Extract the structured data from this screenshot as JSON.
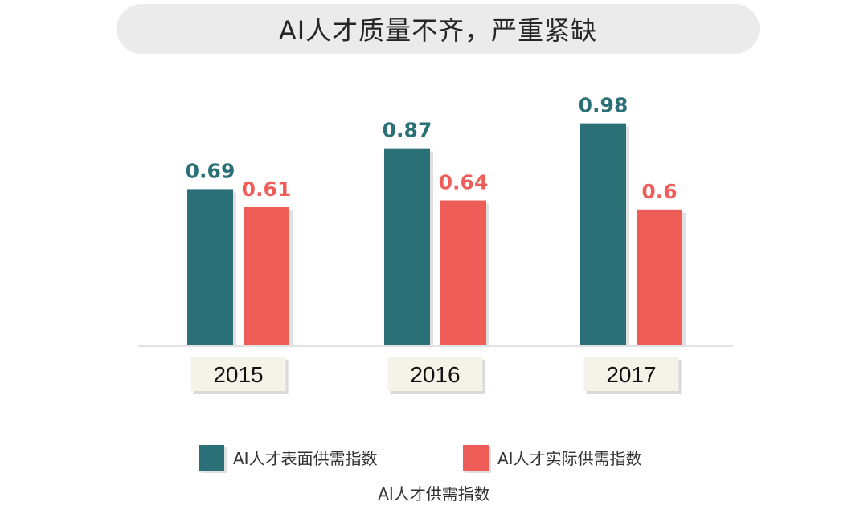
{
  "title": "AI人才质量不齐，严重紧缺",
  "colors": {
    "series_surface": "#2b6f77",
    "series_actual": "#ef5d59",
    "title_background": "#ebebeb",
    "axis_line": "#d9d9d9",
    "year_box": "#f5f3e8"
  },
  "chart_data": {
    "type": "bar",
    "categories": [
      "2015",
      "2016",
      "2017"
    ],
    "series": [
      {
        "name": "AI人才表面供需指数",
        "values": [
          0.69,
          0.87,
          0.98
        ],
        "labels": [
          "0.69",
          "0.87",
          "0.98"
        ]
      },
      {
        "name": "AI人才实际供需指数",
        "values": [
          0.61,
          0.64,
          0.6
        ],
        "labels": [
          "0.61",
          "0.64",
          "0.6"
        ]
      }
    ],
    "xlabel": "AI人才供需指数",
    "ylabel": "",
    "ylim": [
      0,
      1
    ],
    "grid": false,
    "legend_position": "bottom"
  }
}
